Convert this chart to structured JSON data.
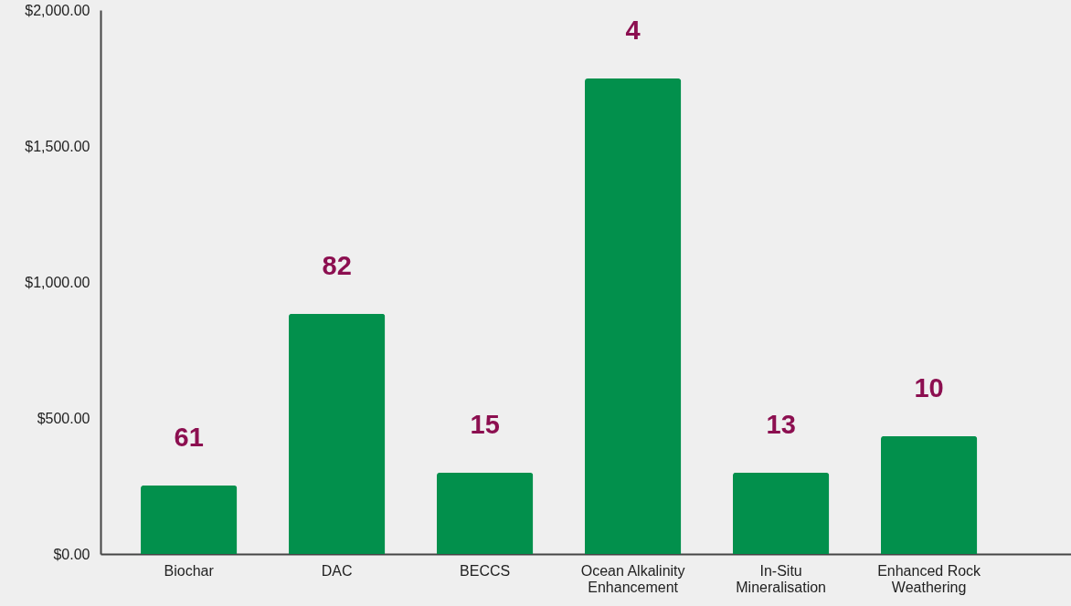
{
  "chart_data": {
    "type": "bar",
    "categories": [
      "Biochar",
      "DAC",
      "BECCS",
      "Ocean Alkalinity Enhancement",
      "In-Situ Mineralisation",
      "Enhanced Rock Weathering"
    ],
    "values": [
      252,
      883,
      299,
      1748,
      299,
      433
    ],
    "color": "#02904c",
    "ylim": [
      0,
      2000
    ],
    "yticks": [
      {
        "value": 0,
        "label": "$0.00"
      },
      {
        "value": 500,
        "label": "$500.00"
      },
      {
        "value": 1000,
        "label": "$1,000.00"
      },
      {
        "value": 1500,
        "label": "$1,500.00"
      },
      {
        "value": 2000,
        "label": "$2,000.00"
      }
    ],
    "grid": false,
    "annotations": [
      "61",
      "82",
      "15",
      "4",
      "13",
      "10"
    ]
  }
}
